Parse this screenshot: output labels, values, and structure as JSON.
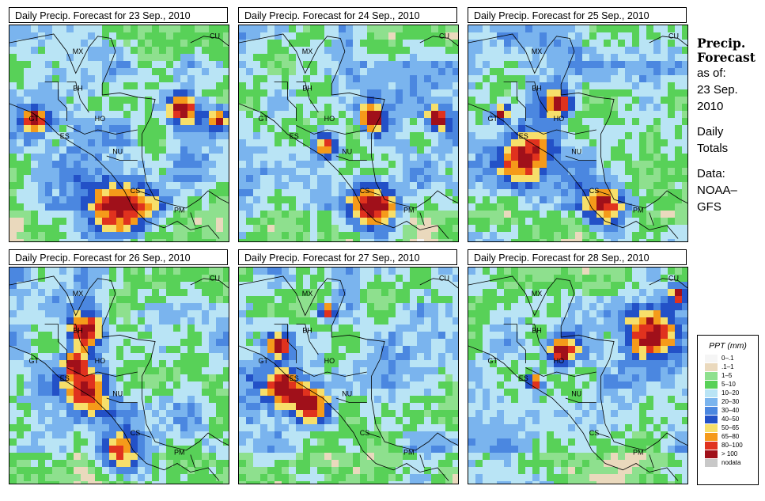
{
  "panels": [
    {
      "title": "Daily Precip. Forecast for  23 Sep., 2010",
      "seed": 11,
      "hotspots": [
        [
          0.12,
          0.43,
          0.06
        ],
        [
          0.5,
          0.85,
          0.14
        ],
        [
          0.78,
          0.38,
          0.07
        ],
        [
          0.95,
          0.42,
          0.05
        ]
      ]
    },
    {
      "title": "Daily Precip. Forecast for  24 Sep., 2010",
      "seed": 23,
      "hotspots": [
        [
          0.58,
          0.83,
          0.12
        ],
        [
          0.4,
          0.54,
          0.06
        ],
        [
          0.6,
          0.42,
          0.06
        ],
        [
          0.9,
          0.42,
          0.05
        ]
      ]
    },
    {
      "title": "Daily Precip. Forecast for  25 Sep., 2010",
      "seed": 37,
      "hotspots": [
        [
          0.27,
          0.59,
          0.13
        ],
        [
          0.62,
          0.82,
          0.1
        ],
        [
          0.42,
          0.35,
          0.06
        ],
        [
          0.15,
          0.4,
          0.04
        ]
      ]
    },
    {
      "title": "Daily Precip. Forecast for  26 Sep., 2010",
      "seed": 41,
      "hotspots": [
        [
          0.35,
          0.29,
          0.08
        ],
        [
          0.35,
          0.55,
          0.1
        ],
        [
          0.5,
          0.85,
          0.1
        ],
        [
          0.3,
          0.43,
          0.05
        ]
      ]
    },
    {
      "title": "Daily Precip. Forecast for  27 Sep., 2010",
      "seed": 53,
      "hotspots": [
        [
          0.2,
          0.55,
          0.08
        ],
        [
          0.33,
          0.62,
          0.08
        ],
        [
          0.18,
          0.35,
          0.05
        ],
        [
          0.4,
          0.2,
          0.04
        ]
      ]
    },
    {
      "title": "Daily Precip. Forecast for  28 Sep., 2010",
      "seed": 67,
      "hotspots": [
        [
          0.42,
          0.38,
          0.07
        ],
        [
          0.82,
          0.3,
          0.12
        ],
        [
          0.95,
          0.12,
          0.05
        ],
        [
          0.3,
          0.52,
          0.04
        ]
      ]
    }
  ],
  "region_labels": [
    "MX",
    "BH",
    "GT",
    "HO",
    "ES",
    "NU",
    "CS",
    "PM",
    "CU"
  ],
  "side": {
    "title_line1": "Precip.",
    "title_line2": "Forecast",
    "asof_line1": "as of:",
    "asof_line2": "23 Sep.",
    "asof_line3": "2010",
    "totals_line1": "Daily",
    "totals_line2": "Totals",
    "data_line1": "Data:",
    "data_line2": "NOAA–",
    "data_line3": "GFS"
  },
  "legend": {
    "title": "PPT (mm)",
    "items": [
      {
        "label": "0–.1",
        "color": "#f5f5f5"
      },
      {
        "label": ".1–1",
        "color": "#ead9bd"
      },
      {
        "label": "1–5",
        "color": "#8ee08e"
      },
      {
        "label": "5–10",
        "color": "#58d158"
      },
      {
        "label": "10–20",
        "color": "#b9e4f5"
      },
      {
        "label": "20–30",
        "color": "#7ab4ee"
      },
      {
        "label": "30–40",
        "color": "#4b87e0"
      },
      {
        "label": "40–50",
        "color": "#2351c7"
      },
      {
        "label": "50–65",
        "color": "#f7df6a"
      },
      {
        "label": "65–80",
        "color": "#f59a1a"
      },
      {
        "label": "80–100",
        "color": "#e0321e"
      },
      {
        "label": "> 100",
        "color": "#a0101a"
      },
      {
        "label": "nodata",
        "color": "#c8c8c8"
      }
    ]
  }
}
